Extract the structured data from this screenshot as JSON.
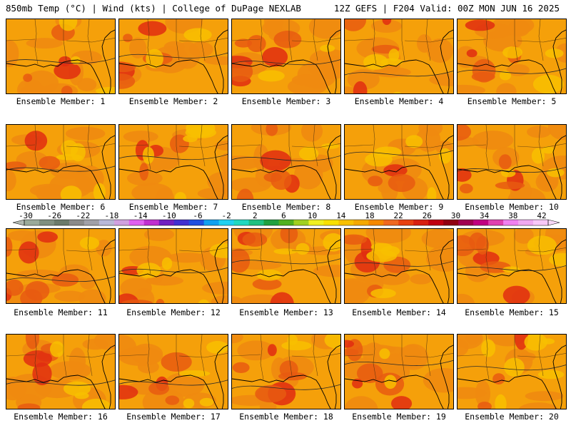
{
  "header": {
    "left": "850mb Temp (°C) | Wind (kts) | College of DuPage NEXLAB",
    "right": "12Z GEFS | F204 Valid: 00Z MON JUN 16 2025"
  },
  "members": [
    {
      "label": "Ensemble Member: 1",
      "hot": 0.35,
      "cool": 0.25
    },
    {
      "label": "Ensemble Member: 2",
      "hot": 0.45,
      "cool": 0.15
    },
    {
      "label": "Ensemble Member: 3",
      "hot": 0.5,
      "cool": 0.2
    },
    {
      "label": "Ensemble Member: 4",
      "hot": 0.3,
      "cool": 0.3
    },
    {
      "label": "Ensemble Member: 5",
      "hot": 0.35,
      "cool": 0.35
    },
    {
      "label": "Ensemble Member: 6",
      "hot": 0.2,
      "cool": 0.4
    },
    {
      "label": "Ensemble Member: 7",
      "hot": 0.25,
      "cool": 0.4
    },
    {
      "label": "Ensemble Member: 8",
      "hot": 0.45,
      "cool": 0.2
    },
    {
      "label": "Ensemble Member: 9",
      "hot": 0.2,
      "cool": 0.45
    },
    {
      "label": "Ensemble Member: 10",
      "hot": 0.4,
      "cool": 0.3
    },
    {
      "label": "Ensemble Member: 11",
      "hot": 0.55,
      "cool": 0.1
    },
    {
      "label": "Ensemble Member: 12",
      "hot": 0.3,
      "cool": 0.3
    },
    {
      "label": "Ensemble Member: 13",
      "hot": 0.4,
      "cool": 0.35
    },
    {
      "label": "Ensemble Member: 14",
      "hot": 0.35,
      "cool": 0.3
    },
    {
      "label": "Ensemble Member: 15",
      "hot": 0.4,
      "cool": 0.25
    },
    {
      "label": "Ensemble Member: 16",
      "hot": 0.4,
      "cool": 0.3
    },
    {
      "label": "Ensemble Member: 17",
      "hot": 0.35,
      "cool": 0.3
    },
    {
      "label": "Ensemble Member: 18",
      "hot": 0.4,
      "cool": 0.25
    },
    {
      "label": "Ensemble Member: 19",
      "hot": 0.5,
      "cool": 0.2
    },
    {
      "label": "Ensemble Member: 20",
      "hot": 0.2,
      "cool": 0.5
    }
  ],
  "colorbar": {
    "ticks": [
      "-30",
      "-26",
      "-22",
      "-18",
      "-14",
      "-10",
      "-6",
      "-2",
      "2",
      "6",
      "10",
      "14",
      "18",
      "22",
      "26",
      "30",
      "34",
      "38",
      "42"
    ],
    "colors": [
      "#9aaa9a",
      "#7f8f7f",
      "#6a7a6a",
      "#8a8a8a",
      "#a0a0a8",
      "#b8b8d8",
      "#d0a0e0",
      "#e060f0",
      "#c030d0",
      "#7020c0",
      "#4030d0",
      "#2050e0",
      "#10a0f0",
      "#20d0f0",
      "#20d8c0",
      "#20c080",
      "#20a040",
      "#50b020",
      "#a0d020",
      "#f0f020",
      "#f8e000",
      "#f8c000",
      "#f5a800",
      "#f58800",
      "#f06820",
      "#e84010",
      "#d82010",
      "#c00010",
      "#900010",
      "#a00050",
      "#c00080",
      "#e040b0",
      "#f080f0",
      "#f0a8f0",
      "#f8c8f8"
    ]
  },
  "palette": {
    "cool": "#f8c000",
    "base": "#f5a00a",
    "warm": "#f08a10",
    "hot": "#e85a10",
    "hottest": "#e02d10",
    "line": "#2a2a2a",
    "state": "#4a3010"
  }
}
